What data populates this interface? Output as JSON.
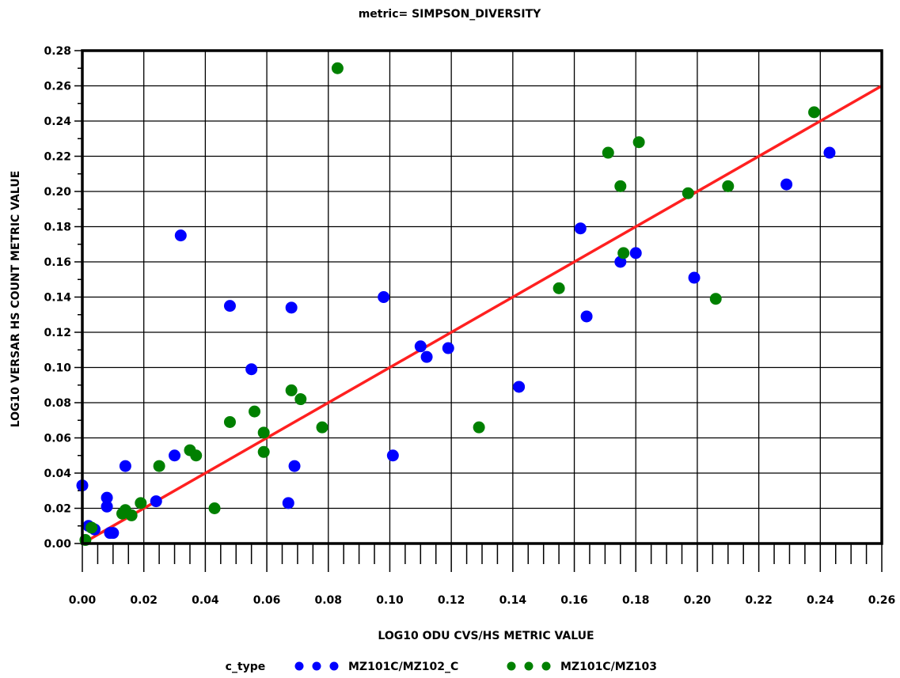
{
  "chart_data": {
    "type": "scatter",
    "title": "metric= SIMPSON_DIVERSITY",
    "xlabel": "LOG10 ODU CVS/HS METRIC VALUE",
    "ylabel": "LOG10 VERSAR HS COUNT METRIC VALUE",
    "xlim": [
      0,
      0.26
    ],
    "ylim": [
      0,
      0.28
    ],
    "x_ticks": [
      0.0,
      0.02,
      0.04,
      0.06,
      0.08,
      0.1,
      0.12,
      0.14,
      0.16,
      0.18,
      0.2,
      0.22,
      0.24,
      0.26
    ],
    "y_ticks": [
      0.0,
      0.02,
      0.04,
      0.06,
      0.08,
      0.1,
      0.12,
      0.14,
      0.16,
      0.18,
      0.2,
      0.22,
      0.24,
      0.26,
      0.28
    ],
    "x_tick_labels": [
      "0.00",
      "0.02",
      "0.04",
      "0.06",
      "0.08",
      "0.10",
      "0.12",
      "0.14",
      "0.16",
      "0.18",
      "0.20",
      "0.22",
      "0.24",
      "0.26"
    ],
    "y_tick_labels": [
      "0.00",
      "0.02",
      "0.04",
      "0.06",
      "0.08",
      "0.10",
      "0.12",
      "0.14",
      "0.16",
      "0.18",
      "0.20",
      "0.22",
      "0.24",
      "0.26",
      "0.28"
    ],
    "grid": true,
    "legend": {
      "title": "c_type",
      "placement": "bottom"
    },
    "reference_line": {
      "x": [
        0,
        0.26
      ],
      "y": [
        0,
        0.26
      ],
      "color": "#ff2020"
    },
    "series": [
      {
        "name": "MZ101C/MZ102_C",
        "color": "#0000ff",
        "points": [
          [
            0.0,
            0.033
          ],
          [
            0.002,
            0.01
          ],
          [
            0.004,
            0.008
          ],
          [
            0.008,
            0.026
          ],
          [
            0.008,
            0.021
          ],
          [
            0.009,
            0.006
          ],
          [
            0.01,
            0.006
          ],
          [
            0.014,
            0.044
          ],
          [
            0.024,
            0.024
          ],
          [
            0.03,
            0.05
          ],
          [
            0.032,
            0.175
          ],
          [
            0.048,
            0.135
          ],
          [
            0.055,
            0.099
          ],
          [
            0.067,
            0.023
          ],
          [
            0.068,
            0.134
          ],
          [
            0.069,
            0.044
          ],
          [
            0.098,
            0.14
          ],
          [
            0.101,
            0.05
          ],
          [
            0.11,
            0.112
          ],
          [
            0.112,
            0.106
          ],
          [
            0.119,
            0.111
          ],
          [
            0.142,
            0.089
          ],
          [
            0.162,
            0.179
          ],
          [
            0.164,
            0.129
          ],
          [
            0.175,
            0.16
          ],
          [
            0.18,
            0.165
          ],
          [
            0.199,
            0.151
          ],
          [
            0.229,
            0.204
          ],
          [
            0.243,
            0.222
          ]
        ]
      },
      {
        "name": "MZ101C/MZ103",
        "color": "#008000",
        "points": [
          [
            0.001,
            0.002
          ],
          [
            0.003,
            0.009
          ],
          [
            0.013,
            0.017
          ],
          [
            0.014,
            0.019
          ],
          [
            0.016,
            0.016
          ],
          [
            0.019,
            0.023
          ],
          [
            0.025,
            0.044
          ],
          [
            0.035,
            0.053
          ],
          [
            0.037,
            0.05
          ],
          [
            0.043,
            0.02
          ],
          [
            0.048,
            0.069
          ],
          [
            0.056,
            0.075
          ],
          [
            0.059,
            0.063
          ],
          [
            0.059,
            0.052
          ],
          [
            0.068,
            0.087
          ],
          [
            0.071,
            0.082
          ],
          [
            0.078,
            0.066
          ],
          [
            0.083,
            0.27
          ],
          [
            0.129,
            0.066
          ],
          [
            0.155,
            0.145
          ],
          [
            0.171,
            0.222
          ],
          [
            0.175,
            0.203
          ],
          [
            0.176,
            0.165
          ],
          [
            0.181,
            0.228
          ],
          [
            0.197,
            0.199
          ],
          [
            0.206,
            0.139
          ],
          [
            0.21,
            0.203
          ],
          [
            0.238,
            0.245
          ]
        ]
      }
    ]
  }
}
